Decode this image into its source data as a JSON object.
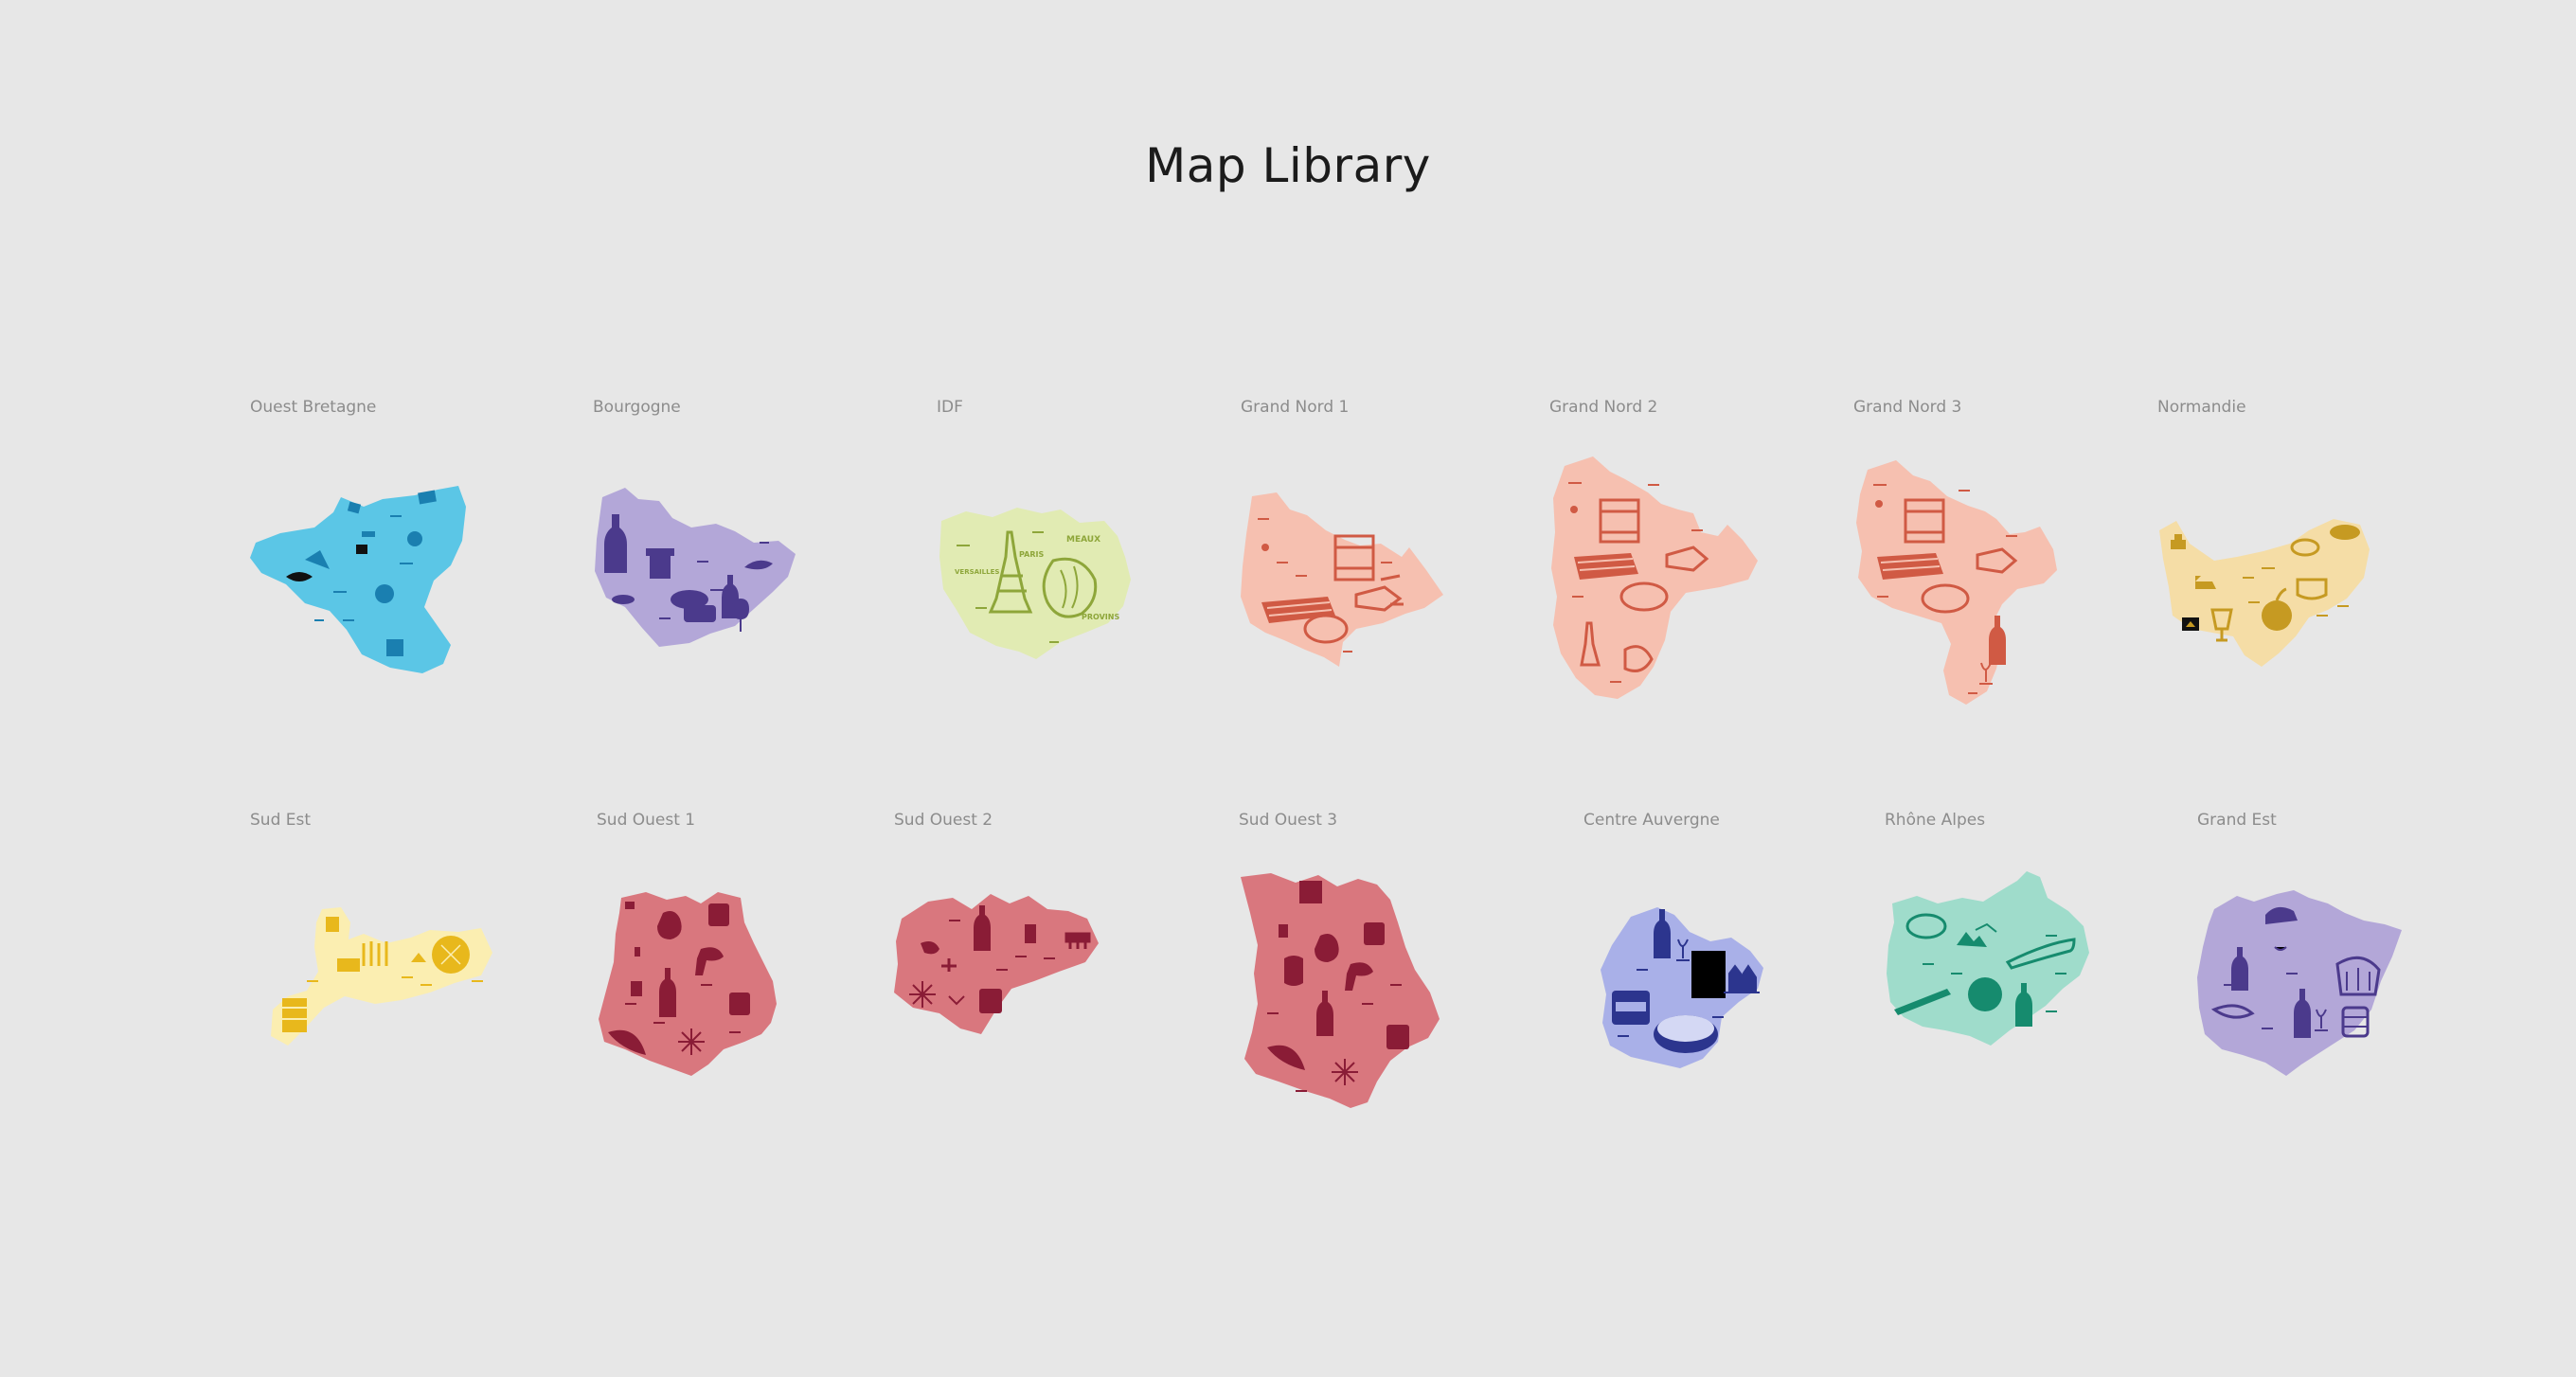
{
  "page": {
    "title": "Map Library"
  },
  "maps": [
    {
      "label": "Ouest Bretagne",
      "fill": "#5bc6e6",
      "ink": "#1a7fb0",
      "icons": [
        "fish-icon",
        "apple-icon",
        "lighthouse-icon",
        "boat-icon",
        "box-icon",
        "crepe-icon"
      ],
      "place_names": []
    },
    {
      "label": "Bourgogne",
      "fill": "#b3a7d8",
      "ink": "#4b3a8c",
      "icons": [
        "wine-bottle-icon",
        "wine-glass-icon",
        "mustard-jar-icon",
        "cheese-icon",
        "snail-icon",
        "bread-icon"
      ],
      "place_names": []
    },
    {
      "label": "IDF",
      "fill": "#e1ebb3",
      "ink": "#8ea63a",
      "icons": [
        "eiffel-tower-icon",
        "croissant-icon"
      ],
      "place_names": [
        "MEAUX",
        "PARIS",
        "VERSAILLES",
        "PROVINS"
      ]
    },
    {
      "label": "Grand Nord 1",
      "fill": "#f6c0b0",
      "ink": "#d05a44",
      "icons": [
        "biscuit-tin-icon",
        "waffle-icon",
        "bread-icon",
        "candy-icon"
      ],
      "place_names": []
    },
    {
      "label": "Grand Nord 2",
      "fill": "#f6c0b0",
      "ink": "#d05a44",
      "icons": [
        "biscuit-tin-icon",
        "waffle-icon",
        "bread-icon",
        "candy-icon",
        "eiffel-tower-icon",
        "croissant-icon"
      ],
      "place_names": []
    },
    {
      "label": "Grand Nord 3",
      "fill": "#f6c0b0",
      "ink": "#d05a44",
      "icons": [
        "biscuit-tin-icon",
        "waffle-icon",
        "bread-icon",
        "candy-icon",
        "champagne-bottle-icon",
        "champagne-glass-icon"
      ],
      "place_names": []
    },
    {
      "label": "Normandie",
      "fill": "#f5dda6",
      "ink": "#c69a22",
      "icons": [
        "cheese-icon",
        "apple-icon",
        "cider-glass-icon",
        "cow-icon",
        "cake-icon",
        "camembert-box-icon"
      ],
      "place_names": []
    },
    {
      "label": "Sud Est",
      "fill": "#fbeeb1",
      "ink": "#e8b81c",
      "icons": [
        "honey-jar-icon",
        "lavender-icon",
        "sun-icon",
        "sardine-can-icon"
      ],
      "place_names": []
    },
    {
      "label": "Sud Ouest 1",
      "fill": "#d9777e",
      "ink": "#8a1c36",
      "icons": [
        "duck-icon",
        "wine-bottle-icon",
        "jar-icon",
        "pepper-icon",
        "flower-icon",
        "pot-icon"
      ],
      "place_names": []
    },
    {
      "label": "Sud Ouest 2",
      "fill": "#d9777e",
      "ink": "#8a1c36",
      "icons": [
        "duck-icon",
        "wine-bottle-icon",
        "jar-icon",
        "flower-icon",
        "bridge-icon"
      ],
      "place_names": []
    },
    {
      "label": "Sud Ouest 3",
      "fill": "#d9777e",
      "ink": "#8a1c36",
      "icons": [
        "duck-icon",
        "wine-bottle-icon",
        "jar-icon",
        "pepper-icon",
        "flower-icon",
        "canele-icon",
        "box-icon"
      ],
      "place_names": []
    },
    {
      "label": "Centre Auvergne",
      "fill": "#a9b0e8",
      "ink": "#2c358e",
      "icons": [
        "wine-bottle-icon",
        "wine-glass-icon",
        "rillettes-jar-icon",
        "cheese-icon",
        "castle-icon",
        "black-square-icon"
      ],
      "place_names": []
    },
    {
      "label": "Rhône Alpes",
      "fill": "#9fdccb",
      "ink": "#168b6e",
      "icons": [
        "cheese-icon",
        "sausage-icon",
        "wine-bottle-icon",
        "mountain-icon",
        "knife-icon"
      ],
      "place_names": []
    },
    {
      "label": "Grand Est",
      "fill": "#b3a7d8",
      "ink": "#4b3a8c",
      "icons": [
        "kougelhopf-icon",
        "wine-bottle-icon",
        "wine-glass-icon",
        "stork-icon",
        "jar-icon",
        "pretzel-icon"
      ],
      "place_names": []
    }
  ]
}
